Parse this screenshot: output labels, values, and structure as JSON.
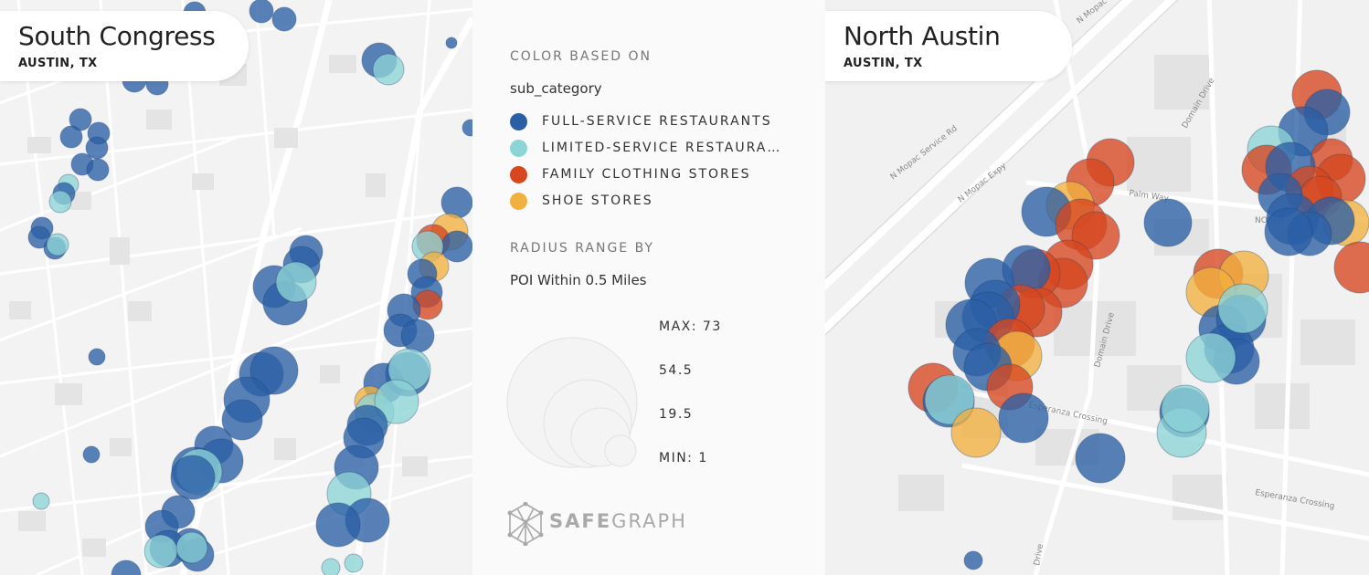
{
  "maps": {
    "left": {
      "title": "South Congress",
      "subtitle": "AUSTIN, TX"
    },
    "right": {
      "title": "North Austin",
      "subtitle": "AUSTIN, TX"
    }
  },
  "street_labels": {
    "mopac1": "N Mopac Service Rd",
    "mopac2": "N Mopac Expy",
    "mopac3": "N Mopac Expy",
    "domain1": "Domain Drive",
    "domain2": "Domain Drive",
    "domain3": "Drive",
    "palm": "Palm Way",
    "north": "NORTH",
    "esperanza1": "Esperanza Crossing",
    "esperanza2": "Esperanza Crossing"
  },
  "legend": {
    "color_heading": "COLOR BASED ON",
    "color_field": "sub_category",
    "categories": [
      {
        "label": "FULL-SERVICE RESTAURANTS",
        "color": "#2a5fa5"
      },
      {
        "label": "LIMITED-SERVICE RESTAURANTS",
        "color": "#8dd4d6"
      },
      {
        "label": "FAMILY CLOTHING STORES",
        "color": "#d6471f"
      },
      {
        "label": "SHOE STORES",
        "color": "#f2b13f"
      }
    ],
    "radius_heading": "RADIUS RANGE BY",
    "radius_field": "POI Within 0.5 Miles",
    "radius_labels": {
      "max": "MAX: 73",
      "v2": "54.5",
      "v3": "19.5",
      "min": "MIN: 1"
    }
  },
  "brand": {
    "part1": "SAFE",
    "part2": "GRAPH",
    "icon": "safegraph-logo-icon"
  }
}
